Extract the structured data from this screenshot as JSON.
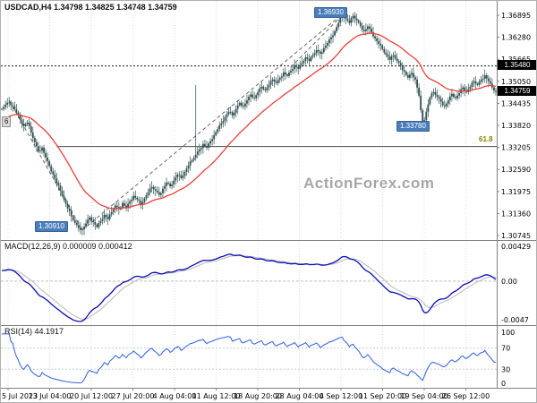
{
  "watermark": "ActionForex.com",
  "colors": {
    "background": "#ffffff",
    "candle": "#2f4f4f",
    "ma": "#e8403a",
    "macd_line": "#0b0bb5",
    "macd_signal": "#bdbdbd",
    "rsi_line": "#4169e1",
    "grid": "#d9d9d9",
    "rsi_grid": "#b9cfe4",
    "annotation_bg": "#4a7ebb",
    "tag_bg": "#000000",
    "fib_label": "#8b8000",
    "separator": "#808080"
  },
  "panels": {
    "main": {
      "title": "USDCAD,H4 1.34798 1.34825 1.34748 1.34759",
      "price_range": [
        1.3062,
        1.3727
      ],
      "y_ticks": [
        1.36895,
        1.3628,
        1.35665,
        1.3505,
        1.34435,
        1.3382,
        1.33205,
        1.3259,
        1.31975,
        1.3136,
        1.30745
      ],
      "tags": {
        "resistance": {
          "text": "1.35480",
          "price": 1.3548
        },
        "current": {
          "text": "1.34759",
          "price": 1.34759
        }
      },
      "hlines": {
        "resistance": {
          "price": 1.3548
        },
        "fib": {
          "price": 1.3323,
          "x_start_bar": 15,
          "label": "61.8"
        }
      },
      "annotations": {
        "high": {
          "text": "1.36930",
          "price": 1.3693
        },
        "sep_low": {
          "text": "1.33780",
          "price": 1.3378
        },
        "jul_low": {
          "text": "1.30910",
          "price": 1.3091
        },
        "marker": {
          "text": "6",
          "price": 1.339
        }
      },
      "trendlines": [
        {
          "b1": 2,
          "p1": 1.3452,
          "b2": 22,
          "p2": 1.309
        },
        {
          "b1": 22,
          "p1": 1.309,
          "b2": 93,
          "p2": 1.3692
        },
        {
          "b1": 79,
          "p1": 1.3545,
          "b2": 93,
          "p2": 1.3689
        }
      ]
    },
    "macd": {
      "label": "MACD(12,26,9) 0.000009 0.000412",
      "ticks": [
        {
          "text": "0.00429",
          "value": 0.00429
        },
        {
          "text": "0.00",
          "value": 0
        },
        {
          "text": "-0.0047",
          "value": -0.0047
        }
      ],
      "fast": 12,
      "slow": 26,
      "signal": 9
    },
    "rsi": {
      "label": "RSI(14) 44.1917",
      "ticks": [
        {
          "text": "100",
          "value": 100
        },
        {
          "text": "70",
          "value": 70
        },
        {
          "text": "30",
          "value": 30
        },
        {
          "text": "0",
          "value": 0
        }
      ],
      "levels": [
        70,
        30
      ],
      "period": 14
    }
  },
  "x_axis": {
    "labels": [
      "5 Jul 2023",
      "13 Jul 04:00",
      "20 Jul 12:00",
      "27 Jul 20:00",
      "4 Aug 04:00",
      "11 Aug 12:00",
      "18 Aug 20:00",
      "28 Aug 04:00",
      "4 Sep 12:00",
      "11 Sep 20:00",
      "19 Sep 04:00",
      "26 Sep 12:00"
    ]
  },
  "chart_data": {
    "type": "candlestick",
    "symbol": "USDCAD",
    "timeframe": "H4",
    "quote": {
      "open": 1.34798,
      "high": 1.34825,
      "low": 1.34748,
      "close": 1.34759
    },
    "closes": [
      1.3428,
      1.344,
      1.3446,
      1.3436,
      1.3418,
      1.3398,
      1.338,
      1.339,
      1.3362,
      1.3335,
      1.331,
      1.332,
      1.3292,
      1.3268,
      1.3245,
      1.3222,
      1.32,
      1.3175,
      1.315,
      1.3128,
      1.311,
      1.3095,
      1.3092,
      1.3108,
      1.3125,
      1.3112,
      1.3098,
      1.3115,
      1.3132,
      1.312,
      1.314,
      1.3158,
      1.3148,
      1.3165,
      1.3152,
      1.317,
      1.3185,
      1.3175,
      1.3162,
      1.3178,
      1.3195,
      1.321,
      1.32,
      1.3188,
      1.3205,
      1.3222,
      1.3212,
      1.3228,
      1.3245,
      1.3235,
      1.3252,
      1.327,
      1.3285,
      1.33,
      1.3315,
      1.333,
      1.332,
      1.3338,
      1.3355,
      1.3372,
      1.3388,
      1.3405,
      1.342,
      1.341,
      1.3428,
      1.3445,
      1.3435,
      1.3452,
      1.3468,
      1.3458,
      1.3475,
      1.349,
      1.348,
      1.3495,
      1.351,
      1.35,
      1.3515,
      1.353,
      1.352,
      1.3535,
      1.355,
      1.354,
      1.3556,
      1.3572,
      1.3562,
      1.3578,
      1.3592,
      1.3582,
      1.3598,
      1.3612,
      1.3628,
      1.3645,
      1.3668,
      1.3692,
      1.368,
      1.3668,
      1.3688,
      1.3675,
      1.366,
      1.3645,
      1.3658,
      1.3642,
      1.3625,
      1.361,
      1.3595,
      1.358,
      1.3565,
      1.3578,
      1.3562,
      1.3548,
      1.3532,
      1.3515,
      1.3528,
      1.351,
      1.3465,
      1.3378,
      1.342,
      1.346,
      1.3475,
      1.3462,
      1.3448,
      1.3435,
      1.3452,
      1.347,
      1.3458,
      1.3472,
      1.3488,
      1.3475,
      1.349,
      1.3505,
      1.3495,
      1.351,
      1.3522,
      1.3505,
      1.3488,
      1.3476
    ],
    "spike": {
      "bar": 53,
      "high": 1.3495
    },
    "prehistory": {
      "start": 1.333,
      "end": 1.3428,
      "bars": 40
    },
    "indicators": {
      "ma": {
        "type": "ema",
        "period": 30
      },
      "macd": [
        12,
        26,
        9
      ],
      "rsi": 14
    }
  }
}
